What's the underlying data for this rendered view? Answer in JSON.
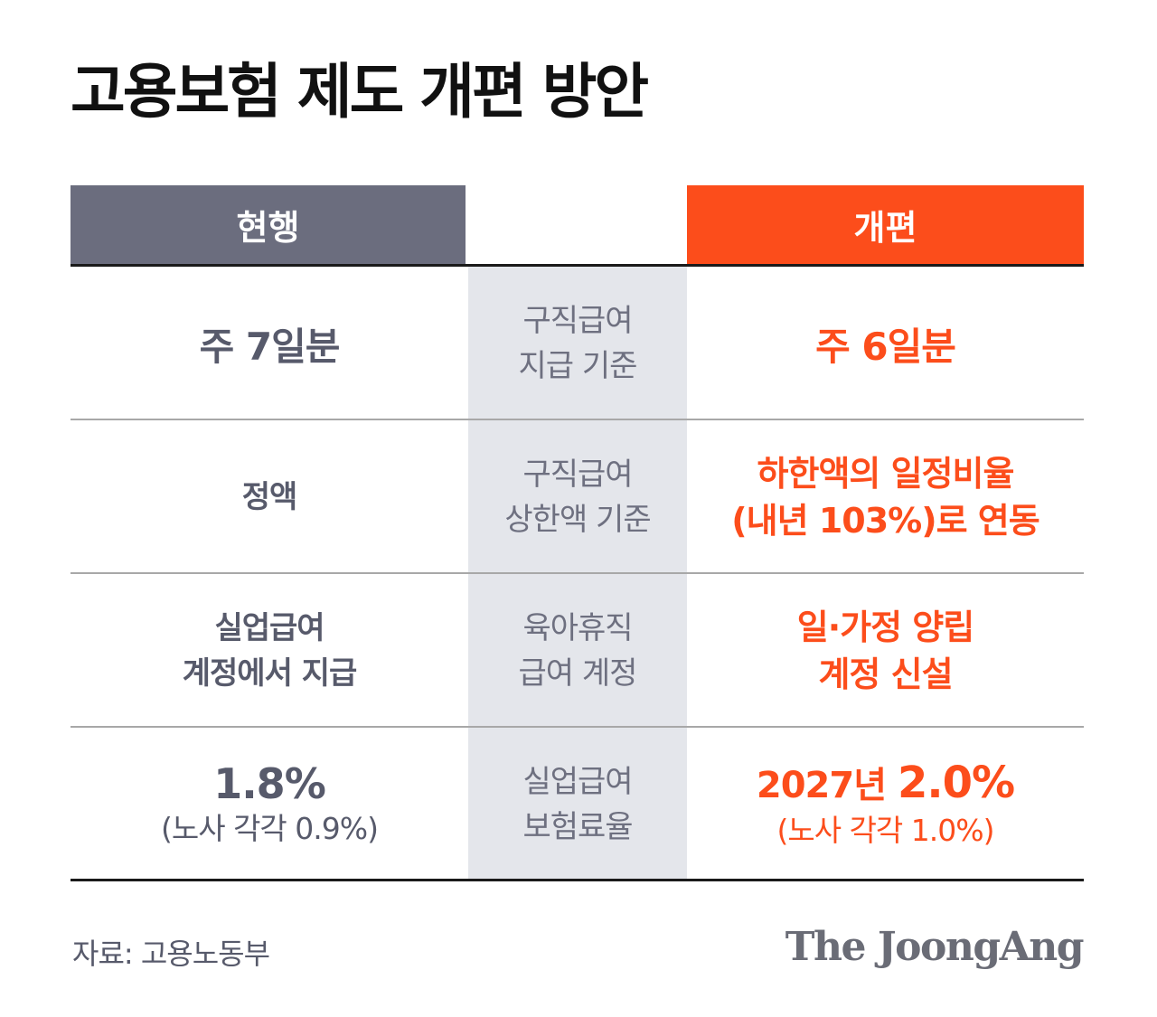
{
  "title": "고용보험 제도 개편 방안",
  "header": {
    "current": "현행",
    "reform": "개편"
  },
  "rows": [
    {
      "current": [
        "주 7일분"
      ],
      "criterion": [
        "구직급여",
        "지급 기준"
      ],
      "reform": [
        "주 6일분"
      ]
    },
    {
      "current": [
        "정액"
      ],
      "criterion": [
        "구직급여",
        "상한액 기준"
      ],
      "reform": [
        "하한액의 일정비율",
        "(내년 103%)로 연동"
      ]
    },
    {
      "current": [
        "실업급여",
        "계정에서 지급"
      ],
      "criterion": [
        "육아휴직",
        "급여 계정"
      ],
      "reform": [
        "일·가정 양립",
        "계정 신설"
      ]
    },
    {
      "current": [
        "1.8%"
      ],
      "current_sub": "(노사 각각 0.9%)",
      "criterion": [
        "실업급여",
        "보험료율"
      ],
      "reform_year": "2027년",
      "reform": [
        "2.0%"
      ],
      "reform_sub": "(노사 각각 1.0%)"
    }
  ],
  "source": "자료: 고용노동부",
  "brand": "The JoongAng",
  "colors": {
    "current": "#6b6d7e",
    "reform": "#fc4d1b",
    "criterion_bg": "#e4e6eb",
    "text_grey": "#575a6b"
  }
}
